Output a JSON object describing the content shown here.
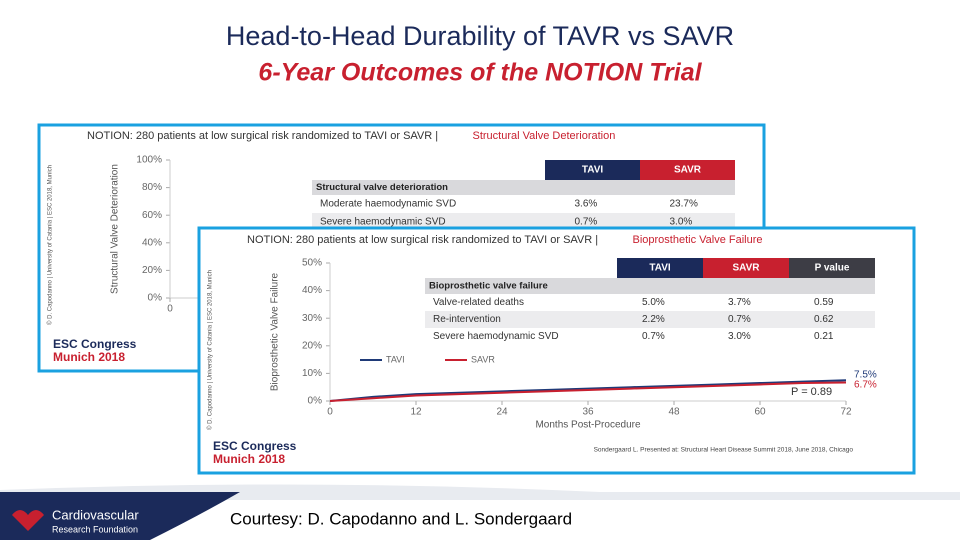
{
  "title": "Head-to-Head Durability of TAVR vs SAVR",
  "subtitle": "6-Year Outcomes of the NOTION Trial",
  "footer": {
    "courtesy": "Courtesy: D. Capodanno and L. Sondergaard",
    "logo_line1": "Cardiovascular",
    "logo_line2": "Research Foundation"
  },
  "chart_data": [
    {
      "type": "line",
      "title": "NOTION: 280 patients at low surgical risk randomized to TAVI or SAVR |",
      "subtitle": "Structural Valve Deterioration",
      "y_label": "Structural Valve Deterioration",
      "side_note": "© D. Capodanno | University of Catania | ESC 2018, Munich",
      "logo": [
        "ESC Congress",
        "Munich 2018"
      ],
      "xlim": [
        0,
        72
      ],
      "xticks": [
        0
      ],
      "ylim": [
        0,
        100
      ],
      "yticks": [
        {
          "value": 0,
          "label": "0%"
        },
        {
          "value": 20,
          "label": "20%"
        },
        {
          "value": 40,
          "label": "40%"
        },
        {
          "value": 60,
          "label": "60%"
        },
        {
          "value": 80,
          "label": "80%"
        },
        {
          "value": 100,
          "label": "100%"
        }
      ],
      "table": {
        "columns": [
          "TAVI",
          "SAVR"
        ],
        "section": "Structural valve deterioration",
        "rows": [
          [
            "Moderate haemodynamic SVD",
            "3.6%",
            "23.7%"
          ],
          [
            "Severe haemodynamic SVD",
            "0.7%",
            "3.0%"
          ]
        ]
      }
    },
    {
      "type": "line",
      "title": "NOTION: 280 patients at low surgical risk randomized to TAVI or SAVR |",
      "subtitle": "Bioprosthetic Valve Failure",
      "y_label": "Bioprosthetic Valve Failure",
      "x_label": "Months Post-Procedure",
      "side_note": "© D. Capodanno | University of Catania | ESC 2018, Munich",
      "logo": [
        "ESC Congress",
        "Munich 2018"
      ],
      "citation": "Sondergaard L. Presented at: Structural Heart Disease Summit 2018, June 2018, Chicago",
      "xlim": [
        0,
        72
      ],
      "xticks": [
        0,
        12,
        24,
        36,
        48,
        60,
        72
      ],
      "ylim": [
        0,
        50
      ],
      "yticks": [
        {
          "value": 0,
          "label": "0%"
        },
        {
          "value": 10,
          "label": "10%"
        },
        {
          "value": 20,
          "label": "20%"
        },
        {
          "value": 30,
          "label": "30%"
        },
        {
          "value": 40,
          "label": "40%"
        },
        {
          "value": 50,
          "label": "50%"
        }
      ],
      "x": [
        0,
        6,
        12,
        18,
        24,
        30,
        36,
        42,
        48,
        54,
        60,
        66,
        72
      ],
      "series": [
        {
          "name": "TAVI",
          "color": "#1f3a78",
          "values": [
            0,
            1.5,
            2.5,
            3,
            3.5,
            4,
            4.5,
            5,
            5.5,
            6,
            6.5,
            7,
            7.5
          ],
          "end_label": "7.5%"
        },
        {
          "name": "SAVR",
          "color": "#c8202f",
          "values": [
            0,
            1,
            2,
            2.5,
            3,
            3.5,
            4,
            4.5,
            5,
            5.5,
            6,
            6.5,
            6.7
          ],
          "end_label": "6.7%"
        }
      ],
      "annotation": "P = 0.89",
      "table": {
        "columns": [
          "TAVI",
          "SAVR",
          "P value"
        ],
        "section": "Bioprosthetic valve failure",
        "rows": [
          [
            "Valve-related deaths",
            "5.0%",
            "3.7%",
            "0.59"
          ],
          [
            "Re-intervention",
            "2.2%",
            "0.7%",
            "0.62"
          ],
          [
            "Severe haemodynamic SVD",
            "0.7%",
            "3.0%",
            "0.21"
          ]
        ]
      }
    }
  ]
}
